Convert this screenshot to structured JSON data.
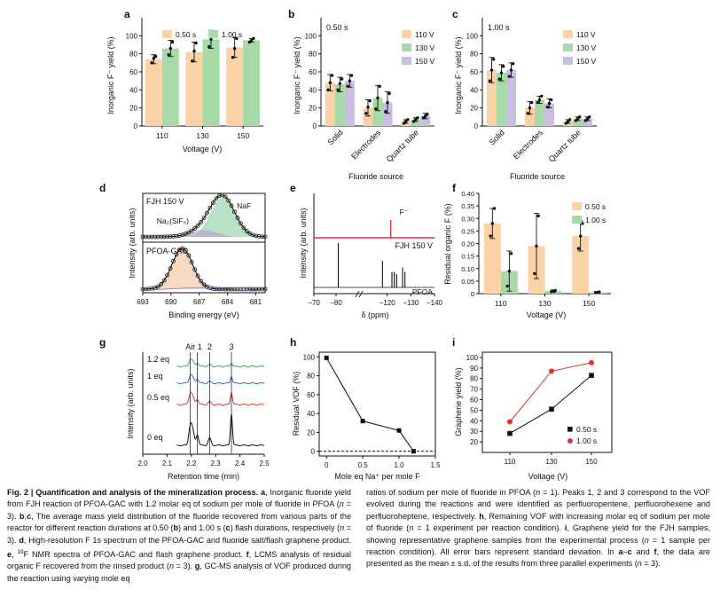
{
  "colors": {
    "orange": "#fbd1a6",
    "green": "#a6dba8",
    "purple": "#c9bde0",
    "red": "#e8312e",
    "blue": "#2d6fd1",
    "line_green": "#3aa65a",
    "gray": "#555555"
  },
  "chart_data": [
    {
      "panel": "a",
      "type": "bar",
      "categories": [
        "110",
        "130",
        "150"
      ],
      "series": [
        {
          "name": "0.50 s",
          "values": [
            74,
            82,
            87
          ],
          "errors": [
            5,
            11,
            11
          ],
          "points": [
            [
              70,
              75,
              77
            ],
            [
              72,
              83,
              92
            ],
            [
              76,
              86,
              97
            ]
          ]
        },
        {
          "name": "1.00 s",
          "values": [
            86,
            96,
            95
          ],
          "errors": [
            9,
            10,
            2
          ],
          "points": [
            [
              79,
              86,
              93
            ],
            [
              88,
              96,
              104
            ],
            [
              93,
              95,
              97
            ]
          ]
        }
      ],
      "xlabel": "Voltage (V)",
      "ylabel": "Inorganic F⁻ yield (%)",
      "ylim": [
        0,
        120
      ],
      "yticks": [
        "0",
        "20",
        "40",
        "60",
        "80",
        "100"
      ],
      "legend": "top"
    },
    {
      "panel": "b",
      "type": "bar",
      "title": "0.50 s",
      "categories": [
        "Solid",
        "Electrodes",
        "Quartz tube"
      ],
      "series": [
        {
          "name": "110 V",
          "values": [
            48,
            20,
            5
          ],
          "errors": [
            9,
            9,
            2
          ],
          "points": [
            [
              40,
              48,
              56
            ],
            [
              14,
              21,
              28
            ],
            [
              3,
              5,
              7
            ]
          ]
        },
        {
          "name": "130 V",
          "values": [
            46,
            31,
            7
          ],
          "errors": [
            8,
            14,
            2
          ],
          "points": [
            [
              40,
              47,
              52
            ],
            [
              19,
              31,
              44
            ],
            [
              5,
              7,
              9
            ]
          ]
        },
        {
          "name": "150 V",
          "values": [
            50,
            26,
            11
          ],
          "errors": [
            7,
            12,
            3
          ],
          "points": [
            [
              44,
              50,
              56
            ],
            [
              16,
              26,
              36
            ],
            [
              9,
              11,
              13
            ]
          ]
        }
      ],
      "xlabel": "Fluoride source",
      "ylabel": "Inorganic F⁻ yield (%)",
      "ylim": [
        0,
        120
      ],
      "yticks": [
        "0",
        "20",
        "40",
        "60",
        "80",
        "100"
      ],
      "legend": "top-right"
    },
    {
      "panel": "c",
      "type": "bar",
      "title": "1.00 s",
      "categories": [
        "Solid",
        "Electrodes",
        "Quartz tube"
      ],
      "series": [
        {
          "name": "110 V",
          "values": [
            62,
            20,
            5
          ],
          "errors": [
            14,
            7,
            2
          ],
          "points": [
            [
              50,
              62,
              74
            ],
            [
              14,
              20,
              26
            ],
            [
              3,
              5,
              7
            ]
          ]
        },
        {
          "name": "130 V",
          "values": [
            59,
            29,
            8
          ],
          "errors": [
            9,
            4,
            2
          ],
          "points": [
            [
              52,
              59,
              66
            ],
            [
              26,
              29,
              33
            ],
            [
              6,
              8,
              10
            ]
          ]
        },
        {
          "name": "150 V",
          "values": [
            62,
            25,
            8
          ],
          "errors": [
            8,
            5,
            2
          ],
          "points": [
            [
              55,
              62,
              69
            ],
            [
              21,
              25,
              29
            ],
            [
              6,
              8,
              10
            ]
          ]
        }
      ],
      "xlabel": "Fluoride source",
      "ylabel": "Inorganic F⁻ yield (%)",
      "ylim": [
        0,
        120
      ],
      "yticks": [
        "0",
        "20",
        "40",
        "60",
        "80",
        "100"
      ],
      "legend": "top-right"
    },
    {
      "panel": "d",
      "type": "line",
      "subtype": "spectrum",
      "xlabel": "Binding energy (eV)",
      "ylabel": "Intensity (arb. units)",
      "xlim": [
        693,
        680
      ],
      "xticks": [
        "693",
        "690",
        "687",
        "684",
        "681"
      ],
      "top_label": "FJH 150 V",
      "bottom_label": "PFOA-GAC",
      "annotations": [
        "NaF",
        "Na₂(SiF₆)"
      ],
      "peaks": {
        "top": [
          {
            "name": "NaF",
            "center": 684.5,
            "width": 1.3
          },
          {
            "name": "Na2(SiF6)",
            "center": 686.5,
            "width": 1.4
          }
        ],
        "bottom": [
          {
            "name": "PFOA-GAC",
            "center": 688.8,
            "width": 1.1
          }
        ]
      }
    },
    {
      "panel": "e",
      "type": "line",
      "subtype": "nmr",
      "xlabel": "δ (ppm)",
      "ylabel": "Intensity (arb. units)",
      "xlim": [
        -70,
        -140
      ],
      "xticks": [
        "−70",
        "−80",
        "−120",
        "−130",
        "−140"
      ],
      "top_label": "FJH 150 V",
      "bottom_label": "PFOA",
      "annotations": [
        "F⁻"
      ],
      "peaks": {
        "top": [
          {
            "ppm": -121.5,
            "height": 1.0
          }
        ],
        "bottom": [
          {
            "ppm": -81,
            "height": 1.0
          },
          {
            "ppm": -118,
            "height": 0.6
          },
          {
            "ppm": -122,
            "height": 0.35
          },
          {
            "ppm": -123,
            "height": 0.35
          },
          {
            "ppm": -124,
            "height": 0.3
          },
          {
            "ppm": -126.5,
            "height": 0.45
          },
          {
            "ppm": -127.5,
            "height": 0.35
          }
        ]
      }
    },
    {
      "panel": "f",
      "type": "bar",
      "categories": [
        "110",
        "130",
        "150"
      ],
      "series": [
        {
          "name": "0.50 s",
          "values": [
            0.28,
            0.19,
            0.23
          ],
          "errors": [
            0.06,
            0.13,
            0.06
          ],
          "points": [
            [
              0.23,
              0.28,
              0.34
            ],
            [
              0.08,
              0.19,
              0.31
            ],
            [
              0.18,
              0.23,
              0.28
            ]
          ]
        },
        {
          "name": "1.00 s",
          "values": [
            0.09,
            0.01,
            0.005
          ],
          "errors": [
            0.08,
            0.005,
            0.003
          ],
          "points": [
            [
              0.03,
              0.09,
              0.16
            ],
            [
              0.008,
              0.01,
              0.013
            ],
            [
              0.004,
              0.005,
              0.007
            ]
          ]
        }
      ],
      "xlabel": "Voltage (V)",
      "ylabel": "Residual organic F (%)",
      "ylim": [
        0,
        0.4
      ],
      "yticks": [
        "0",
        "0.05",
        "0.10",
        "0.15",
        "0.20",
        "0.25",
        "0.30",
        "0.35",
        "0.40"
      ],
      "legend": "top-right"
    },
    {
      "panel": "g",
      "type": "line",
      "subtype": "chromatogram",
      "xlabel": "Retention time (min)",
      "ylabel": "Intensity (arb. units)",
      "xlim": [
        2.0,
        2.5
      ],
      "xticks": [
        "2.0",
        "2.1",
        "2.2",
        "2.3",
        "2.4",
        "2.5"
      ],
      "series": [
        {
          "name": "1.2 eq",
          "color": "green"
        },
        {
          "name": "1 eq",
          "color": "blue"
        },
        {
          "name": "0.5 eq",
          "color": "red"
        },
        {
          "name": "0 eq",
          "color": "black"
        }
      ],
      "markers": [
        {
          "label": "Air",
          "x": 2.195
        },
        {
          "label": "1",
          "x": 2.225
        },
        {
          "label": "2",
          "x": 2.275
        },
        {
          "label": "3",
          "x": 2.365
        }
      ],
      "marker_label": "Air 1"
    },
    {
      "panel": "h",
      "type": "line",
      "x": [
        0,
        0.5,
        1.0,
        1.2
      ],
      "y": [
        99,
        32,
        22,
        0
      ],
      "xlabel": "Mole eq Na⁺ per mole F",
      "ylabel": "Residual VOF (%)",
      "xlim": [
        -0.1,
        1.5
      ],
      "ylim": [
        -5,
        105
      ],
      "xticks": [
        "0",
        "0.5",
        "1.0",
        "1.5"
      ],
      "yticks": [
        "0",
        "20",
        "40",
        "60",
        "80",
        "100"
      ],
      "baseline": 0
    },
    {
      "panel": "i",
      "type": "line",
      "categories": [
        "110",
        "130",
        "150"
      ],
      "series": [
        {
          "name": "0.50 s",
          "values": [
            28,
            51,
            83
          ]
        },
        {
          "name": "1.00 s",
          "values": [
            39,
            87,
            95
          ]
        }
      ],
      "xlabel": "Voltage (V)",
      "ylabel": "Graphene yield (%)",
      "ylim": [
        10,
        105
      ],
      "yticks": [
        "20",
        "30",
        "40",
        "50",
        "60",
        "70",
        "80",
        "90",
        "100"
      ],
      "legend": "bottom-right"
    }
  ],
  "panel_letters": [
    "a",
    "b",
    "c",
    "d",
    "e",
    "f",
    "g",
    "h",
    "i"
  ],
  "caption": {
    "left": [
      {
        "b": "Fig. 2 | Quantification and analysis of the mineralization process. a",
        "t": ", Inorganic fluoride yield from FJH reaction of PFOA-GAC with 1.2 molar eq of sodium per mole of fluoride in PFOA ("
      },
      {
        "i": "n",
        "t": " = 3). "
      },
      {
        "b": "b",
        "t": ","
      },
      {
        "b": "c",
        "t": ", The average mass yield distribution of the fluoride recovered from various parts of the reactor for different reaction durations at 0.50 ("
      },
      {
        "b": "b",
        "t": ") and 1.00 s ("
      },
      {
        "b": "c",
        "t": ") flash durations, respectively ("
      },
      {
        "i": "n",
        "t": " = 3). "
      },
      {
        "b": "d",
        "t": ", High-resolution F 1s spectrum of the PFOA-GAC and fluoride salt/flash graphene product. "
      },
      {
        "b": "e",
        "t": ", "
      },
      {
        "sup": "19",
        "t": "F NMR spectra of PFOA-GAC and flash graphene product. "
      },
      {
        "b": "f",
        "t": ", LCMS analysis of residual organic F recovered from the rinsed product ("
      },
      {
        "i": "n",
        "t": " = 3). "
      },
      {
        "b": "g",
        "t": ", GC-MS analysis of VOF produced during the reaction using varying mole eq"
      }
    ],
    "right": [
      {
        "t": "ratios of sodium per mole of fluoride in PFOA ("
      },
      {
        "i": "n",
        "t": " = 1). Peaks 1, 2 and 3 correspond to the VOF evolved during the reactions and were identified as perfluoropentene, perfluorohexene and perfluoroheptene, respectively. "
      },
      {
        "b": "h",
        "t": ", Remaining VOF with increasing molar eq of sodium per mole of fluoride ("
      },
      {
        "i": "n",
        "t": " = 1 experiment per reaction condition). "
      },
      {
        "b": "i",
        "t": ", Graphene yield for the FJH samples, showing representative graphene samples from the experimental process ("
      },
      {
        "i": "n",
        "t": " = 1 sample per reaction condition). All error bars represent standard deviation. In "
      },
      {
        "b": "a",
        "t": "–"
      },
      {
        "b": "c",
        "t": " and "
      },
      {
        "b": "f",
        "t": ", the data are presented as the mean ± s.d. of the results from three parallel experiments ("
      },
      {
        "i": "n",
        "t": " = 3)."
      }
    ]
  }
}
